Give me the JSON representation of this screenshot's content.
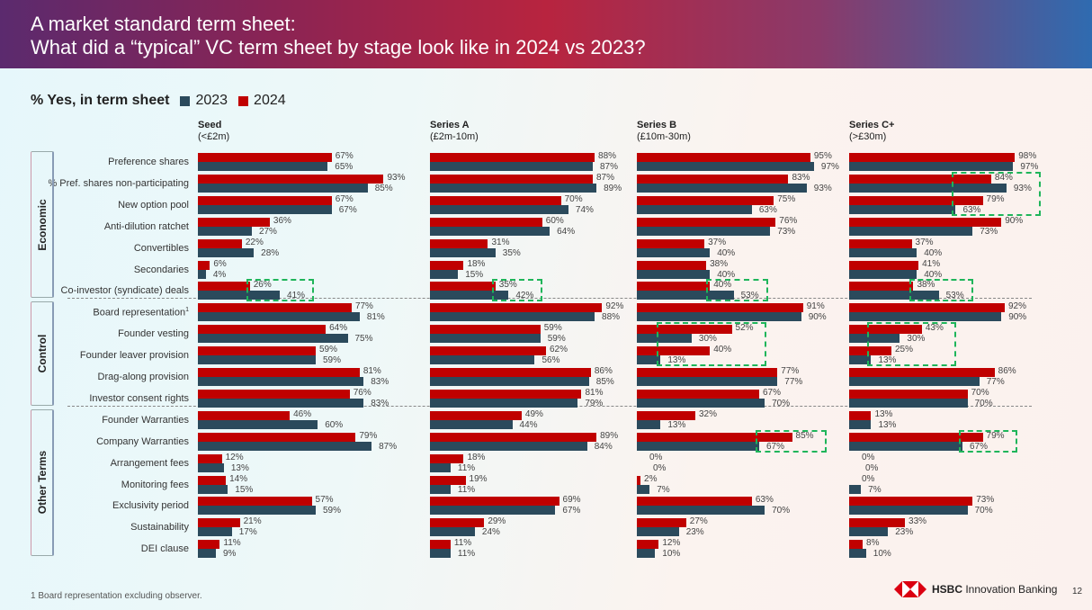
{
  "header": {
    "title_line1": "A market standard term sheet:",
    "title_line2": "What did a “typical” VC term sheet by stage look like in 2024 vs 2023?"
  },
  "legend": {
    "label": "% Yes, in term sheet",
    "items": [
      {
        "name": "2023",
        "color": "#2b4a5c"
      },
      {
        "name": "2024",
        "color": "#c00000"
      }
    ]
  },
  "sections": [
    {
      "name": "Economic",
      "rows": [
        0,
        6
      ]
    },
    {
      "name": "Control",
      "rows": [
        7,
        11
      ]
    },
    {
      "name": "Other Terms",
      "rows": [
        12,
        18
      ]
    }
  ],
  "footer": {
    "footnote": "1 Board representation excluding observer.",
    "brand_bold": "HSBC",
    "brand_rest": " Innovation Banking",
    "page": "12"
  },
  "chart_data": {
    "type": "bar",
    "orientation": "horizontal",
    "unit": "%",
    "categories": [
      "Preference shares",
      "% Pref. shares non-participating",
      "New option pool",
      "Anti-dilution ratchet",
      "Convertibles",
      "Secondaries",
      "Co-investor (syndicate) deals",
      "Board representation",
      "Founder vesting",
      "Founder leaver provision",
      "Drag-along provision",
      "Investor consent rights",
      "Founder Warranties",
      "Company Warranties",
      "Arrangement fees",
      "Monitoring fees",
      "Exclusivity period",
      "Sustainability",
      "DEI clause"
    ],
    "category_footnotes": {
      "Board representation": "1"
    },
    "panels": [
      {
        "title": "Seed",
        "subtitle": "(<£2m)",
        "series": [
          {
            "name": "2024",
            "values": [
              67,
              93,
              67,
              36,
              22,
              6,
              26,
              77,
              64,
              59,
              81,
              76,
              46,
              79,
              12,
              14,
              57,
              21,
              11
            ]
          },
          {
            "name": "2023",
            "values": [
              65,
              85,
              67,
              27,
              28,
              4,
              41,
              81,
              75,
              59,
              83,
              83,
              60,
              87,
              13,
              15,
              59,
              17,
              9
            ]
          }
        ],
        "highlighted_rows": [
          [
            6,
            6
          ]
        ]
      },
      {
        "title": "Series A",
        "subtitle": "(£2m-10m)",
        "series": [
          {
            "name": "2024",
            "values": [
              88,
              87,
              70,
              60,
              31,
              18,
              35,
              92,
              59,
              62,
              86,
              81,
              49,
              89,
              18,
              19,
              69,
              29,
              11
            ]
          },
          {
            "name": "2023",
            "values": [
              87,
              89,
              74,
              64,
              35,
              15,
              42,
              88,
              59,
              56,
              85,
              79,
              44,
              84,
              11,
              11,
              67,
              24,
              11
            ]
          }
        ],
        "highlighted_rows": [
          [
            6,
            6
          ]
        ]
      },
      {
        "title": "Series B",
        "subtitle": "(£10m-30m)",
        "series": [
          {
            "name": "2024",
            "values": [
              95,
              83,
              75,
              76,
              37,
              38,
              40,
              91,
              52,
              40,
              77,
              67,
              32,
              85,
              0,
              2,
              63,
              27,
              12
            ]
          },
          {
            "name": "2023",
            "values": [
              97,
              93,
              63,
              73,
              40,
              40,
              53,
              90,
              30,
              13,
              77,
              70,
              13,
              67,
              0,
              7,
              70,
              23,
              10
            ]
          }
        ],
        "highlighted_rows": [
          [
            6,
            6
          ],
          [
            8,
            9
          ],
          [
            13,
            13
          ]
        ]
      },
      {
        "title": "Series C+",
        "subtitle": "(>£30m)",
        "series": [
          {
            "name": "2024",
            "values": [
              98,
              84,
              79,
              90,
              37,
              41,
              38,
              92,
              43,
              25,
              86,
              70,
              13,
              79,
              0,
              0,
              73,
              33,
              8
            ]
          },
          {
            "name": "2023",
            "values": [
              97,
              93,
              63,
              73,
              40,
              40,
              53,
              90,
              30,
              13,
              77,
              70,
              13,
              67,
              0,
              7,
              70,
              23,
              10
            ]
          }
        ],
        "highlighted_rows": [
          [
            1,
            2
          ],
          [
            6,
            6
          ],
          [
            8,
            9
          ],
          [
            13,
            13
          ]
        ]
      }
    ],
    "xlim": [
      0,
      100
    ],
    "grid": false,
    "legend_position": "top-left",
    "colors": {
      "2024": "#c00000",
      "2023": "#2b4a5c",
      "highlight": "#1fb55a"
    }
  }
}
